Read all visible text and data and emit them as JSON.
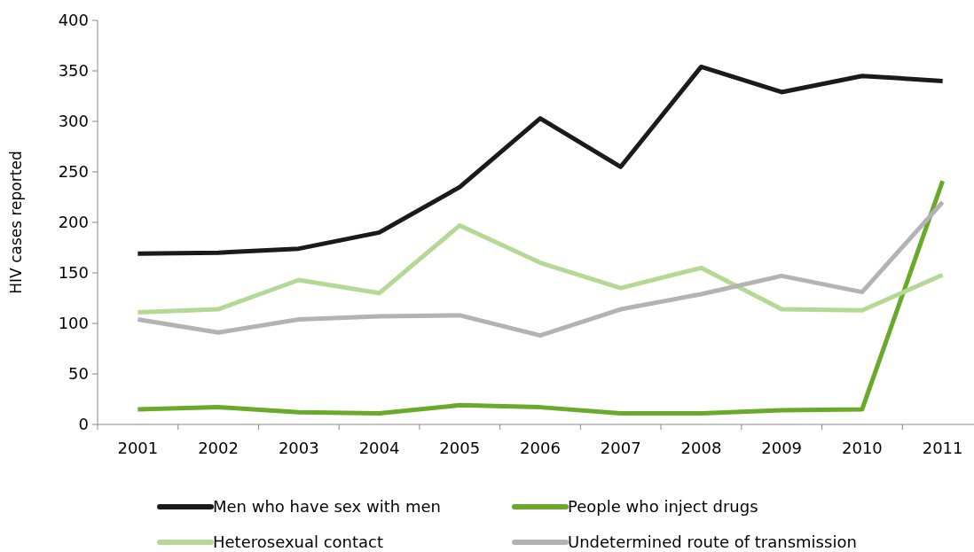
{
  "chart_data": {
    "type": "line",
    "ylabel": "HIV cases reported",
    "categories": [
      "2001",
      "2002",
      "2003",
      "2004",
      "2005",
      "2006",
      "2007",
      "2008",
      "2009",
      "2010",
      "2011"
    ],
    "series": [
      {
        "name": "Men who have sex with men",
        "color": "#1a1a1a",
        "values": [
          169,
          170,
          174,
          190,
          235,
          303,
          255,
          354,
          329,
          345,
          340
        ]
      },
      {
        "name": "People who inject drugs",
        "color": "#6aaa2a",
        "values": [
          15,
          17,
          12,
          11,
          19,
          17,
          11,
          11,
          14,
          15,
          241
        ]
      },
      {
        "name": "Heterosexual contact",
        "color": "#b5d995",
        "values": [
          111,
          114,
          143,
          130,
          197,
          160,
          135,
          155,
          114,
          113,
          148
        ]
      },
      {
        "name": "Undetermined route of transmission",
        "color": "#b3b3b3",
        "values": [
          104,
          91,
          104,
          107,
          108,
          88,
          114,
          129,
          147,
          131,
          220
        ]
      }
    ],
    "ylim": [
      0,
      400
    ],
    "yticks": [
      0,
      50,
      100,
      150,
      200,
      250,
      300,
      350,
      400
    ],
    "grid": false,
    "legend": "bottom",
    "marker": "none",
    "line_style": "solid"
  }
}
